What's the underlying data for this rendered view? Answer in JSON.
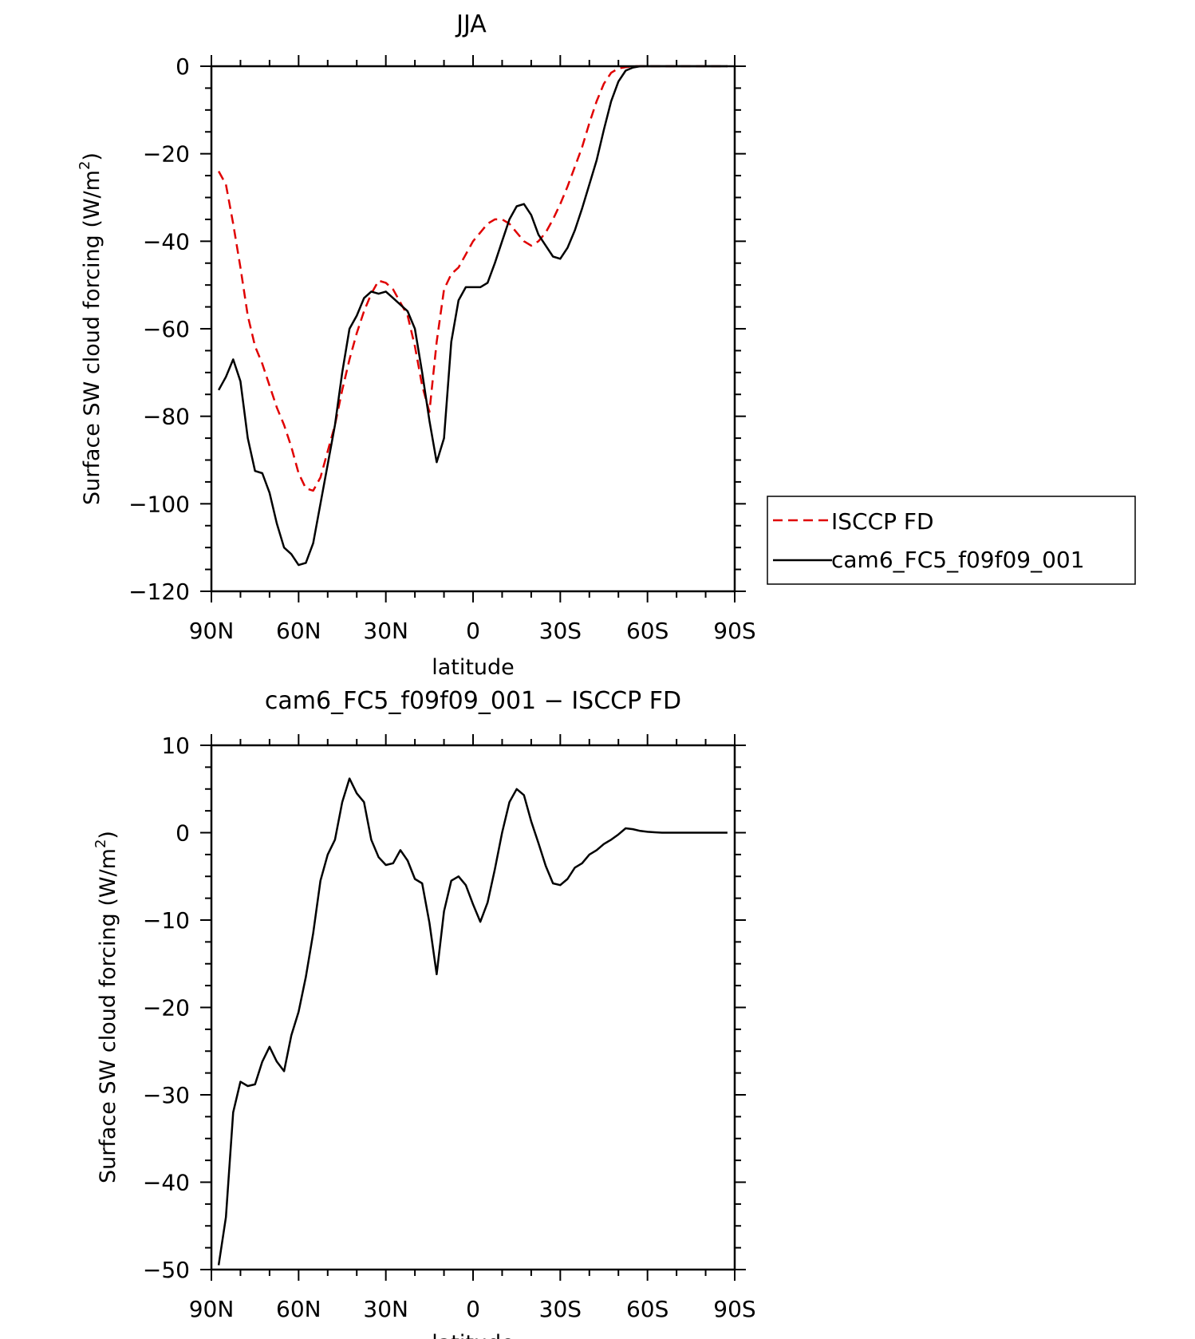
{
  "chart_data": [
    {
      "type": "line",
      "title": "JJA",
      "xlabel": "latitude",
      "ylabel": "Surface SW cloud forcing (W/m",
      "ylabel_sup": "2",
      "ylabel_close": ")",
      "xlim": [
        90,
        -90
      ],
      "ylim": [
        -120,
        0
      ],
      "xticks": [
        90,
        60,
        30,
        0,
        -30,
        -60,
        -90
      ],
      "xtick_labels": [
        "90N",
        "60N",
        "30N",
        "0",
        "30S",
        "60S",
        "90S"
      ],
      "yticks": [
        0,
        -20,
        -40,
        -60,
        -80,
        -100,
        -120
      ],
      "ytick_labels": [
        "0",
        "−20",
        "−40",
        "−60",
        "−80",
        "−100",
        "−120"
      ],
      "legend_position": "right",
      "series": [
        {
          "name": "ISCCP FD",
          "color": "#e00000",
          "dash": "dashed",
          "x": [
            87.5,
            85,
            82.5,
            80,
            77.5,
            75,
            72.5,
            70,
            67.5,
            65,
            62.5,
            60,
            57.5,
            55,
            52.5,
            50,
            47.5,
            45,
            42.5,
            40,
            37.5,
            35,
            32.5,
            30,
            27.5,
            25,
            22.5,
            20,
            17.5,
            15,
            12.5,
            10,
            7.5,
            5,
            2.5,
            0,
            -2.5,
            -5,
            -7.5,
            -10,
            -12.5,
            -15,
            -17.5,
            -20,
            -22.5,
            -25,
            -27.5,
            -30,
            -32.5,
            -35,
            -37.5,
            -40,
            -42.5,
            -45,
            -47.5,
            -50,
            -52.5,
            -55,
            -57.5,
            -60,
            -62.5,
            -65,
            -67.5,
            -70,
            -72.5,
            -75,
            -77.5,
            -80,
            -82.5,
            -85,
            -87.5
          ],
          "y": [
            -24,
            -27,
            -36,
            -46,
            -57,
            -64,
            -68,
            -73,
            -78,
            -82,
            -87,
            -93,
            -96.5,
            -97,
            -94,
            -88,
            -82,
            -74,
            -67,
            -61,
            -56,
            -52,
            -49,
            -49.5,
            -51,
            -54,
            -57,
            -64,
            -73,
            -79,
            -63,
            -51,
            -47.5,
            -46,
            -43,
            -40,
            -38,
            -36,
            -35,
            -35,
            -36,
            -38,
            -40,
            -41,
            -40,
            -38,
            -35,
            -31.5,
            -27.5,
            -23,
            -18.5,
            -13,
            -8,
            -4,
            -1.5,
            -0.5,
            -0.2,
            0,
            0,
            0,
            0,
            0,
            0,
            0,
            0,
            0,
            0,
            0,
            0,
            0,
            0
          ]
        },
        {
          "name": "cam6_FC5_f09f09_001",
          "color": "#000000",
          "dash": "solid",
          "x": [
            87.5,
            85,
            82.5,
            80,
            77.5,
            75,
            72.5,
            70,
            67.5,
            65,
            62.5,
            60,
            57.5,
            55,
            52.5,
            50,
            47.5,
            45,
            42.5,
            40,
            37.5,
            35,
            32.5,
            30,
            27.5,
            25,
            22.5,
            20,
            17.5,
            15,
            12.5,
            10,
            7.5,
            5,
            2.5,
            0,
            -2.5,
            -5,
            -7.5,
            -10,
            -12.5,
            -15,
            -17.5,
            -20,
            -22.5,
            -25,
            -27.5,
            -30,
            -32.5,
            -35,
            -37.5,
            -40,
            -42.5,
            -45,
            -47.5,
            -50,
            -52.5,
            -55,
            -57.5,
            -60,
            -62.5,
            -65,
            -67.5,
            -70,
            -72.5,
            -75,
            -77.5,
            -80,
            -82.5,
            -85,
            -87.5
          ],
          "y": [
            -74,
            -71,
            -67,
            -72,
            -85,
            -92.5,
            -93,
            -97.5,
            -104.5,
            -110,
            -111.5,
            -114,
            -113.5,
            -109,
            -100,
            -91,
            -82,
            -70,
            -60,
            -57,
            -53,
            -51.5,
            -52,
            -51.5,
            -53,
            -54.5,
            -56,
            -60,
            -70,
            -81,
            -90.5,
            -85,
            -63,
            -53.5,
            -50.5,
            -50.5,
            -50.5,
            -49.5,
            -45,
            -40,
            -35,
            -32,
            -31.5,
            -34,
            -38.5,
            -41,
            -43.5,
            -44,
            -41.5,
            -37.5,
            -32.5,
            -27,
            -21.5,
            -14.5,
            -8,
            -3.5,
            -1,
            -0.3,
            0,
            0,
            0,
            0,
            0,
            0,
            0,
            0,
            0,
            0,
            0,
            0,
            0
          ]
        }
      ]
    },
    {
      "type": "line",
      "title": "cam6_FC5_f09f09_001 − ISCCP FD",
      "xlabel": "latitude",
      "ylabel": "Surface SW cloud forcing (W/m",
      "ylabel_sup": "2",
      "ylabel_close": ")",
      "xlim": [
        90,
        -90
      ],
      "ylim": [
        -50,
        10
      ],
      "xticks": [
        90,
        60,
        30,
        0,
        -30,
        -60,
        -90
      ],
      "xtick_labels": [
        "90N",
        "60N",
        "30N",
        "0",
        "30S",
        "60S",
        "90S"
      ],
      "yticks": [
        10,
        0,
        -10,
        -20,
        -30,
        -40,
        -50
      ],
      "ytick_labels": [
        "10",
        "0",
        "−10",
        "−20",
        "−30",
        "−40",
        "−50"
      ],
      "series": [
        {
          "color": "#000000",
          "dash": "solid",
          "x": [
            87.5,
            85,
            82.5,
            80,
            77.5,
            75,
            72.5,
            70,
            67.5,
            65,
            62.5,
            60,
            57.5,
            55,
            52.5,
            50,
            47.5,
            45,
            42.5,
            40,
            37.5,
            35,
            32.5,
            30,
            27.5,
            25,
            22.5,
            20,
            17.5,
            15,
            12.5,
            10,
            7.5,
            5,
            2.5,
            0,
            -2.5,
            -5,
            -7.5,
            -10,
            -12.5,
            -15,
            -17.5,
            -20,
            -22.5,
            -25,
            -27.5,
            -30,
            -32.5,
            -35,
            -37.5,
            -40,
            -42.5,
            -45,
            -47.5,
            -50,
            -52.5,
            -55,
            -57.5,
            -60,
            -62.5,
            -65,
            -67.5,
            -70,
            -72.5,
            -75,
            -77.5,
            -80,
            -82.5,
            -85,
            -87.5
          ],
          "y": [
            -49.5,
            -44,
            -32,
            -28.5,
            -29,
            -28.8,
            -26.2,
            -24.5,
            -26.2,
            -27.3,
            -23.2,
            -20.5,
            -16.5,
            -11.5,
            -5.5,
            -2.5,
            -0.8,
            3.5,
            6.2,
            4.5,
            3.5,
            -0.8,
            -2.8,
            -3.7,
            -3.5,
            -2,
            -3.2,
            -5.3,
            -5.8,
            -10.3,
            -16.2,
            -9,
            -5.5,
            -5,
            -6,
            -8.2,
            -10.2,
            -8,
            -4.2,
            0,
            3.5,
            5,
            4.3,
            1.3,
            -1.2,
            -3.8,
            -5.8,
            -6,
            -5.3,
            -4,
            -3.5,
            -2.5,
            -2,
            -1.3,
            -0.8,
            -0.2,
            0.5,
            0.4,
            0.2,
            0.1,
            0.05,
            0,
            0,
            0,
            0,
            0,
            0,
            0,
            0,
            0,
            0
          ]
        }
      ]
    }
  ]
}
